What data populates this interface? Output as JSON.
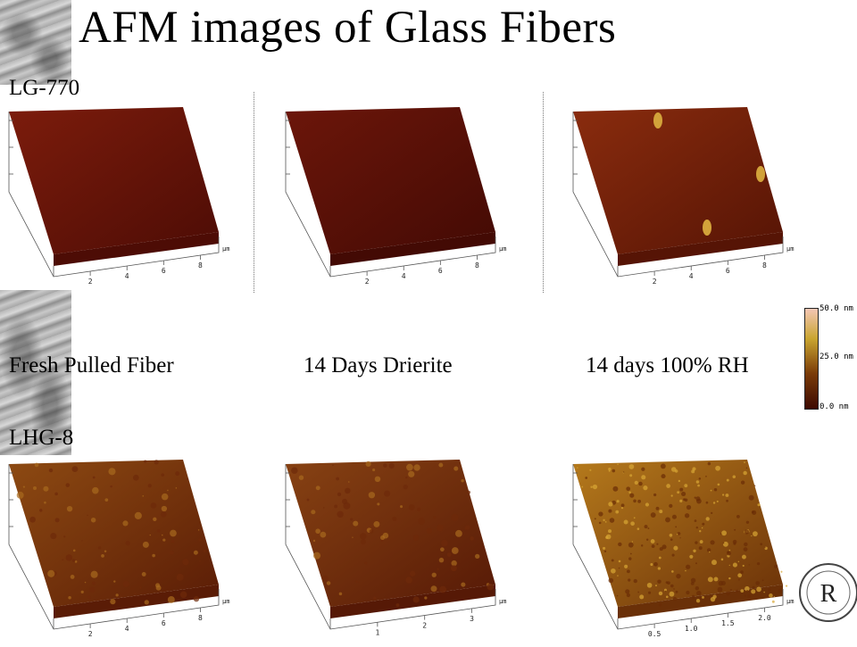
{
  "slide": {
    "title": "AFM images of Glass Fibers",
    "row_labels": {
      "top": "LG-770",
      "bottom": "LHG-8"
    },
    "captions": [
      "Fresh Pulled Fiber",
      "14 Days Drierite",
      "14 days 100% RH"
    ]
  },
  "colorbar": {
    "labels": [
      "50.0 nm",
      "25.0 nm",
      "0.0 nm"
    ],
    "colors": {
      "high": "#f4c7b5",
      "mid_high": "#c9a530",
      "mid": "#7a3b08",
      "low": "#3d0a02"
    }
  },
  "images": [
    {
      "id": "lg770-fresh",
      "x_unit": "μm",
      "x_ticks": [
        "2",
        "4",
        "6",
        "8"
      ],
      "color_top": "#7c1c0c",
      "color_shade": "#4d0c05"
    },
    {
      "id": "lg770-drierite",
      "x_unit": "μm",
      "x_ticks": [
        "2",
        "4",
        "6",
        "8"
      ],
      "color_top": "#6c160a",
      "color_shade": "#430a04"
    },
    {
      "id": "lg770-rh",
      "x_unit": "μm",
      "x_ticks": [
        "2",
        "4",
        "6",
        "8"
      ],
      "color_top": "#8a2c0e",
      "color_shade": "#561405"
    },
    {
      "id": "lhg8-fresh",
      "x_unit": "μm",
      "x_ticks": [
        "2",
        "4",
        "6",
        "8"
      ],
      "color_top": "#8d4a12",
      "color_shade": "#5a1c06"
    },
    {
      "id": "lhg8-drierite",
      "x_unit": "μm",
      "x_ticks": [
        "1",
        "2",
        "3"
      ],
      "color_top": "#874213",
      "color_shade": "#561906"
    },
    {
      "id": "lhg8-rh",
      "x_unit": "μm",
      "x_ticks": [
        "0.5",
        "1.0",
        "1.5",
        "2.0"
      ],
      "color_top": "#b57a1c",
      "color_shade": "#6a3008"
    }
  ],
  "logo": {
    "text": "R"
  }
}
